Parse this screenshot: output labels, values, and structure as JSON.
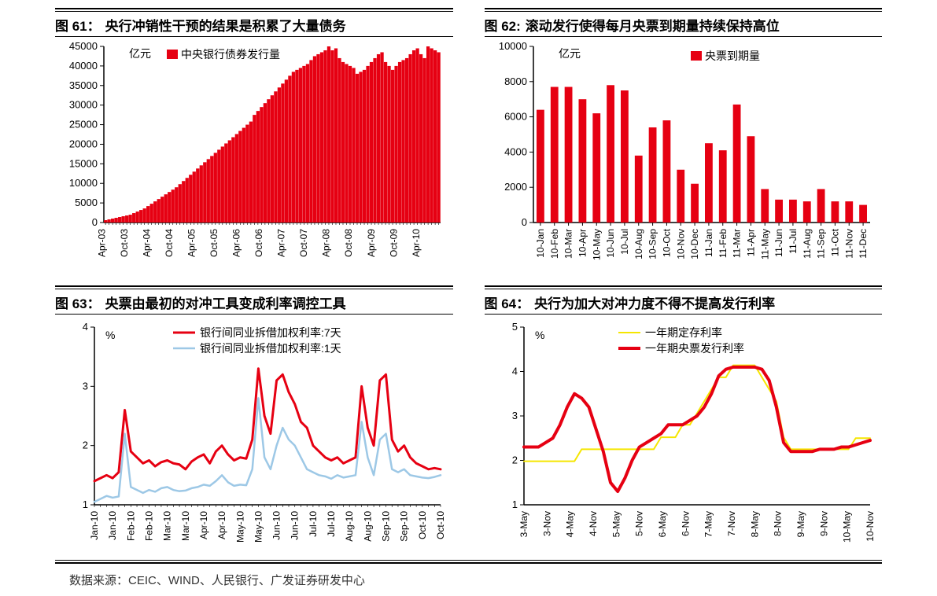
{
  "source_text": "数据来源：CEIC、WIND、人民银行、广发证券研发中心",
  "colors": {
    "red": "#e60012",
    "red_line": "#e60012",
    "light_blue": "#9dc8e6",
    "yellow": "#f5e600",
    "axis": "#000000",
    "rule": "#000000"
  },
  "chart61": {
    "type": "bar",
    "title_fig": "图 61：",
    "title_text": "央行冲销性干预的结果是积累了大量债务",
    "y_unit": "亿元",
    "legend": [
      "中央银行债券发行量"
    ],
    "legend_colors": [
      "#e60012"
    ],
    "ylim": [
      0,
      45000
    ],
    "ytick_step": 5000,
    "x_labels": [
      "Apr-03",
      "Oct-03",
      "Apr-04",
      "Oct-04",
      "Apr-05",
      "Oct-05",
      "Apr-06",
      "Oct-06",
      "Apr-07",
      "Oct-07",
      "Apr-08",
      "Oct-08",
      "Apr-09",
      "Oct-09",
      "Apr-10"
    ],
    "values": [
      600,
      800,
      1000,
      1200,
      1400,
      1600,
      1800,
      2000,
      2400,
      2800,
      3200,
      3600,
      4200,
      4800,
      5400,
      6000,
      6600,
      7200,
      7800,
      8400,
      9000,
      9800,
      10600,
      11400,
      12200,
      13000,
      13800,
      14600,
      15400,
      16200,
      17000,
      17800,
      18600,
      19400,
      20200,
      21000,
      21800,
      22600,
      23400,
      24200,
      25000,
      25800,
      27500,
      28500,
      29500,
      30500,
      31500,
      32500,
      33500,
      34500,
      35500,
      36500,
      37500,
      38500,
      39000,
      39500,
      40000,
      40500,
      41500,
      42500,
      43000,
      43500,
      44000,
      45000,
      44000,
      44500,
      42000,
      41000,
      40500,
      40000,
      39500,
      38000,
      38500,
      39000,
      40000,
      41000,
      42000,
      43000,
      43500,
      41000,
      40000,
      39000,
      40000,
      41000,
      41500,
      42000,
      43000,
      44000,
      44500,
      43000,
      42000,
      45000,
      44500,
      44000,
      43500
    ],
    "bar_color": "#e60012"
  },
  "chart62": {
    "type": "bar",
    "title_fig": "图 62:",
    "title_text": "滚动发行使得每月央票到期量持续保持高位",
    "y_unit": "亿元",
    "legend": [
      "央票到期量"
    ],
    "legend_colors": [
      "#e60012"
    ],
    "ylim": [
      0,
      10000
    ],
    "ytick_step": 2000,
    "x_labels": [
      "10-Jan",
      "10-Feb",
      "10-Mar",
      "10-Apr",
      "10-May",
      "10-Jun",
      "10-Jul",
      "10-Aug",
      "10-Sep",
      "10-Oct",
      "10-Nov",
      "10-Dec",
      "11-Jan",
      "11-Feb",
      "11-Mar",
      "11-Apr",
      "11-May",
      "11-Jun",
      "11-Jul",
      "11-Aug",
      "11-Sep",
      "11-Oct",
      "11-Nov",
      "11-Dec"
    ],
    "values": [
      6400,
      7700,
      7700,
      7000,
      6200,
      7800,
      7500,
      3800,
      5400,
      5800,
      3000,
      2200,
      4500,
      4100,
      6700,
      4900,
      1900,
      1300,
      1300,
      1200,
      1900,
      1200,
      1200,
      1000
    ],
    "bar_color": "#e60012"
  },
  "chart63": {
    "type": "line",
    "title_fig": "图 63：",
    "title_text": "央票由最初的对冲工具变成利率调控工具",
    "y_unit": "%",
    "legend": [
      "银行间同业拆借加权利率:7天",
      "银行间同业拆借加权利率:1天"
    ],
    "legend_colors": [
      "#e60012",
      "#9dc8e6"
    ],
    "ylim": [
      1,
      4
    ],
    "ytick_step": 1,
    "x_labels": [
      "Jan-10",
      "Jan-10",
      "Feb-10",
      "Feb-10",
      "Mar-10",
      "Mar-10",
      "Apr-10",
      "Apr-10",
      "May-10",
      "May-10",
      "Jun-10",
      "Jun-10",
      "Jul-10",
      "Jul-10",
      "Aug-10",
      "Aug-10",
      "Sep-10",
      "Sep-10",
      "Oct-10",
      "Oct-10"
    ],
    "line_widths": [
      3,
      2.5
    ],
    "series": [
      [
        1.4,
        1.45,
        1.5,
        1.45,
        1.55,
        2.6,
        1.9,
        1.8,
        1.7,
        1.75,
        1.65,
        1.72,
        1.75,
        1.7,
        1.68,
        1.6,
        1.73,
        1.8,
        1.85,
        1.7,
        1.9,
        2.0,
        1.85,
        1.75,
        1.8,
        1.78,
        2.1,
        3.3,
        2.5,
        2.2,
        3.1,
        3.2,
        2.9,
        2.7,
        2.4,
        2.3,
        2.0,
        1.9,
        1.8,
        1.75,
        1.8,
        1.7,
        1.75,
        1.8,
        3.0,
        2.3,
        2.0,
        3.1,
        3.2,
        2.1,
        1.9,
        2.0,
        1.8,
        1.7,
        1.65,
        1.6,
        1.62,
        1.6
      ],
      [
        1.05,
        1.1,
        1.15,
        1.12,
        1.14,
        2.2,
        1.3,
        1.25,
        1.2,
        1.25,
        1.22,
        1.28,
        1.3,
        1.25,
        1.23,
        1.24,
        1.28,
        1.3,
        1.34,
        1.32,
        1.4,
        1.5,
        1.38,
        1.32,
        1.34,
        1.33,
        1.6,
        2.8,
        1.8,
        1.6,
        2.0,
        2.3,
        2.1,
        2.0,
        1.8,
        1.6,
        1.55,
        1.5,
        1.48,
        1.44,
        1.5,
        1.46,
        1.48,
        1.5,
        2.4,
        1.8,
        1.5,
        2.1,
        2.2,
        1.6,
        1.55,
        1.6,
        1.5,
        1.48,
        1.46,
        1.45,
        1.47,
        1.5
      ]
    ],
    "x_markers": 58
  },
  "chart64": {
    "type": "line",
    "title_fig": "图 64：",
    "title_text": "央行为加大对冲力度不得不提高发行利率",
    "y_unit": "%",
    "legend": [
      "一年期定存利率",
      "一年期央票发行利率"
    ],
    "legend_colors": [
      "#f5e600",
      "#e60012"
    ],
    "ylim": [
      1,
      5
    ],
    "ytick_step": 1,
    "x_labels": [
      "3-May",
      "3-Nov",
      "4-May",
      "4-Nov",
      "5-May",
      "5-Nov",
      "6-May",
      "6-Nov",
      "7-May",
      "7-Nov",
      "8-May",
      "8-Nov",
      "9-May",
      "9-Nov",
      "10-May",
      "10-Nov"
    ],
    "line_widths": [
      2,
      4
    ],
    "series": [
      [
        1.98,
        1.98,
        1.98,
        1.98,
        1.98,
        1.98,
        1.98,
        1.98,
        2.25,
        2.25,
        2.25,
        2.25,
        2.25,
        2.25,
        2.25,
        2.25,
        2.25,
        2.25,
        2.25,
        2.52,
        2.52,
        2.52,
        2.8,
        2.8,
        3.06,
        3.33,
        3.6,
        3.87,
        3.87,
        4.14,
        4.14,
        4.14,
        4.14,
        3.87,
        3.6,
        3.33,
        2.52,
        2.25,
        2.25,
        2.25,
        2.25,
        2.25,
        2.25,
        2.25,
        2.25,
        2.25,
        2.5,
        2.5,
        2.5
      ],
      [
        2.3,
        2.3,
        2.3,
        2.4,
        2.5,
        2.8,
        3.2,
        3.5,
        3.4,
        3.2,
        2.7,
        2.2,
        1.5,
        1.3,
        1.6,
        2.0,
        2.3,
        2.4,
        2.5,
        2.6,
        2.8,
        2.8,
        2.8,
        2.9,
        3.0,
        3.2,
        3.5,
        3.9,
        4.05,
        4.1,
        4.1,
        4.1,
        4.1,
        4.05,
        3.8,
        3.2,
        2.4,
        2.2,
        2.2,
        2.2,
        2.2,
        2.25,
        2.25,
        2.25,
        2.3,
        2.3,
        2.35,
        2.4,
        2.45
      ]
    ]
  }
}
